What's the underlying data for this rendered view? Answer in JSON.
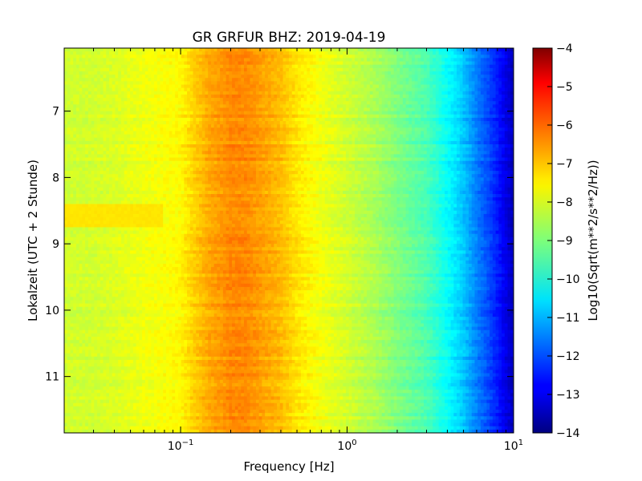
{
  "chart_data": {
    "type": "heatmap",
    "title": "GR GRFUR BHZ: 2019-04-19",
    "xlabel": "Frequency [Hz]",
    "ylabel": "Lokalzeit (UTC + 2 Stunde)",
    "x_scale": "log",
    "xlim": [
      0.02,
      10
    ],
    "x_ticks": [
      {
        "value": 0.1,
        "base": "10",
        "exponent": "−1"
      },
      {
        "value": 1,
        "base": "10",
        "exponent": "0"
      },
      {
        "value": 10,
        "base": "10",
        "exponent": "1"
      }
    ],
    "ylim": [
      6.05,
      11.85
    ],
    "y_inverted": true,
    "y_ticks": [
      "7",
      "8",
      "9",
      "10",
      "11"
    ],
    "colormap": "jet",
    "colorbar": {
      "label": "Log10(Sqrt(m**2/s**2/Hz))",
      "range": [
        -14,
        -4
      ],
      "ticks": [
        "−4",
        "−5",
        "−6",
        "−7",
        "−8",
        "−9",
        "−10",
        "−11",
        "−12",
        "−13",
        "−14"
      ]
    },
    "spectrum_profile": {
      "frequencies_hz": [
        0.02,
        0.03,
        0.04,
        0.06,
        0.08,
        0.1,
        0.12,
        0.15,
        0.2,
        0.25,
        0.3,
        0.4,
        0.5,
        0.7,
        1.0,
        1.5,
        2.0,
        3.0,
        4.0,
        5.0,
        6.0,
        7.0,
        8.0,
        9.0,
        10.0
      ],
      "log_amplitude": [
        -8.2,
        -8.2,
        -8.1,
        -7.9,
        -7.8,
        -7.7,
        -7.3,
        -6.9,
        -6.6,
        -6.6,
        -6.8,
        -7.1,
        -7.5,
        -7.9,
        -8.2,
        -8.6,
        -9.0,
        -9.5,
        -10.2,
        -10.8,
        -11.5,
        -12.0,
        -12.5,
        -13.0,
        -13.4
      ]
    },
    "annotations": {
      "elevated_segment": {
        "time_start": 8.4,
        "time_end": 8.75,
        "freq_max_hz": 0.078,
        "log_amplitude": -7.5
      }
    }
  }
}
